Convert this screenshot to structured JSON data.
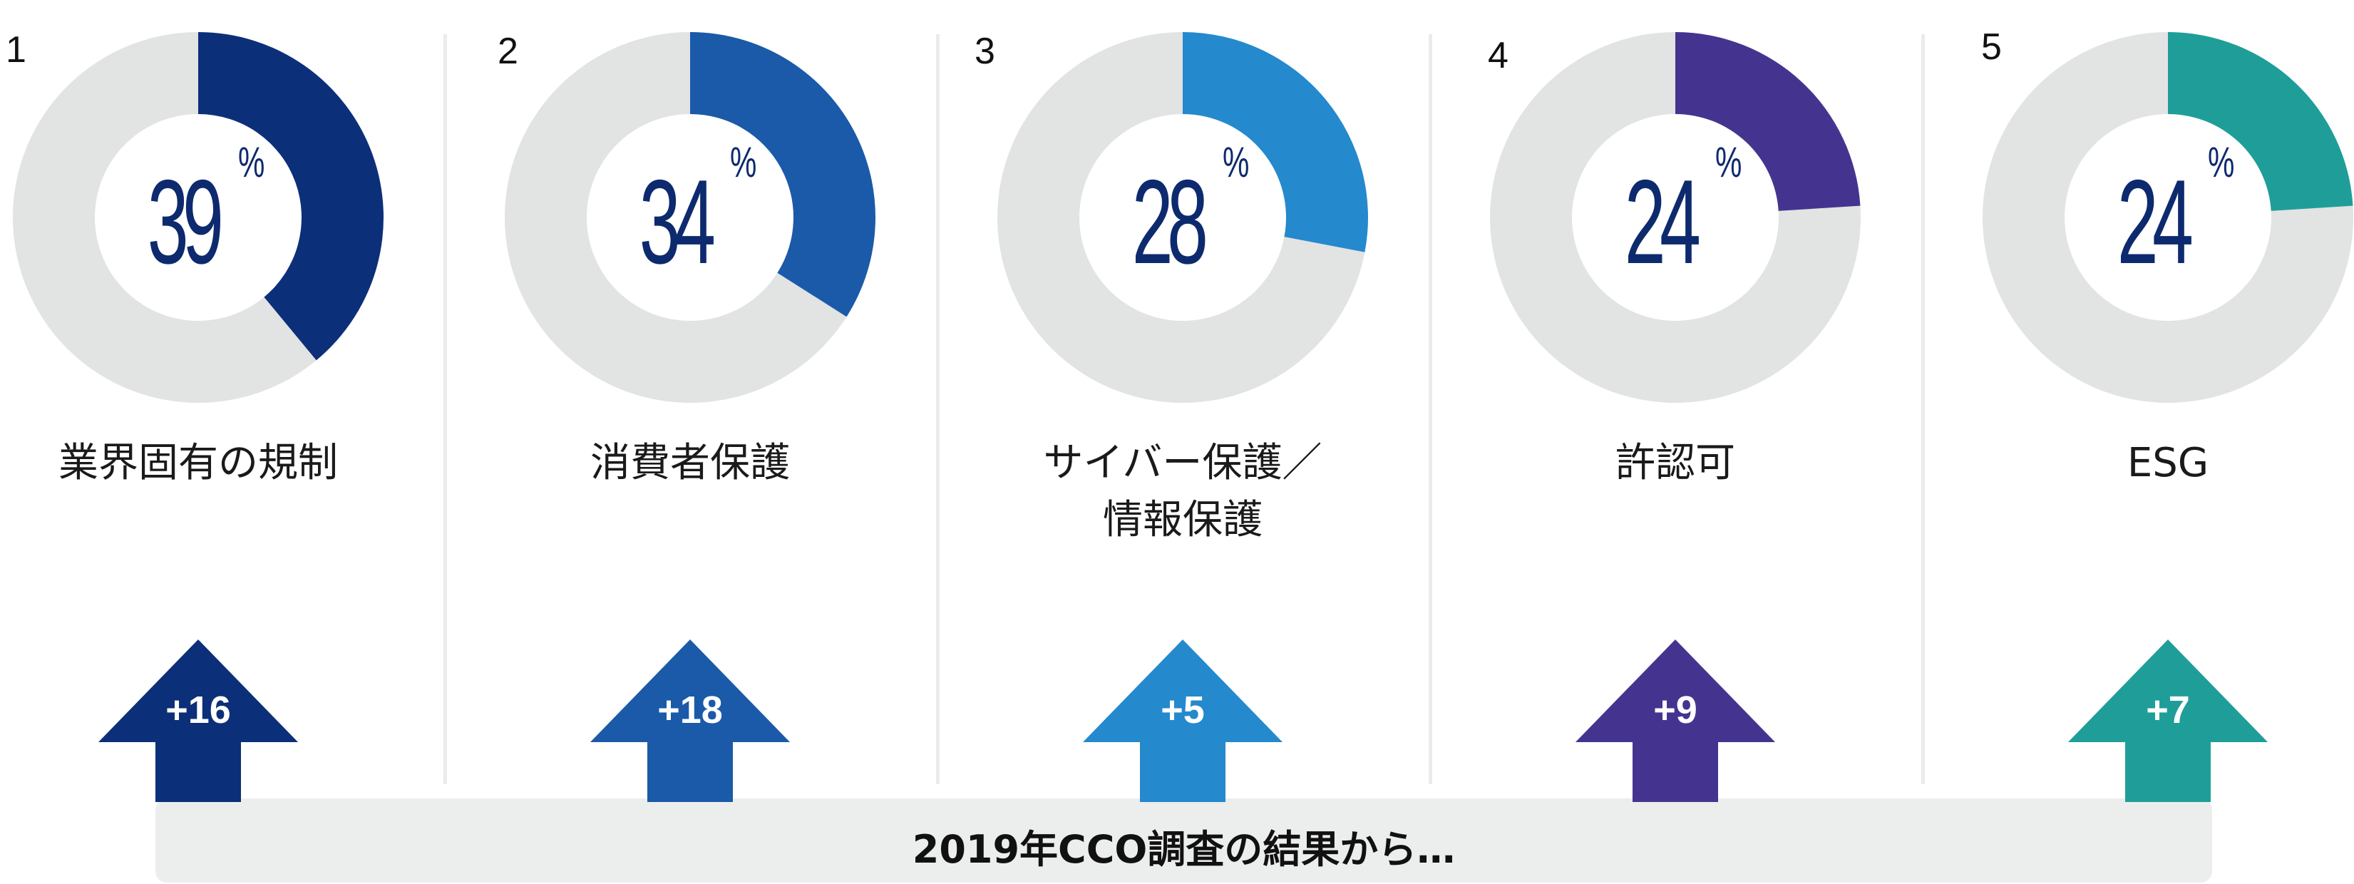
{
  "chart_data": {
    "type": "pie",
    "variant": "donut-row",
    "items": [
      {
        "rank": "1",
        "value": 39,
        "value_label": "39",
        "unit": "%",
        "label": "業界固有の規制",
        "change": "+16",
        "color": "#0c2f79"
      },
      {
        "rank": "2",
        "value": 34,
        "value_label": "34",
        "unit": "%",
        "label": "消費者保護",
        "change": "+18",
        "color": "#1a5aa8"
      },
      {
        "rank": "3",
        "value": 28,
        "value_label": "28",
        "unit": "%",
        "label": "サイバー保護／情報保護",
        "label_lines": [
          "サイバー保護／",
          "情報保護"
        ],
        "change": "+5",
        "color": "#2489cd"
      },
      {
        "rank": "4",
        "value": 24,
        "value_label": "24",
        "unit": "%",
        "label": "許認可",
        "change": "+9",
        "color": "#45348f"
      },
      {
        "rank": "5",
        "value": 24,
        "value_label": "24",
        "unit": "%",
        "label": "ESG",
        "change": "+7",
        "color": "#1f9e99"
      }
    ],
    "remainder_color": "#e2e3e3",
    "footer": "2019年CCO調査の結果から…"
  }
}
